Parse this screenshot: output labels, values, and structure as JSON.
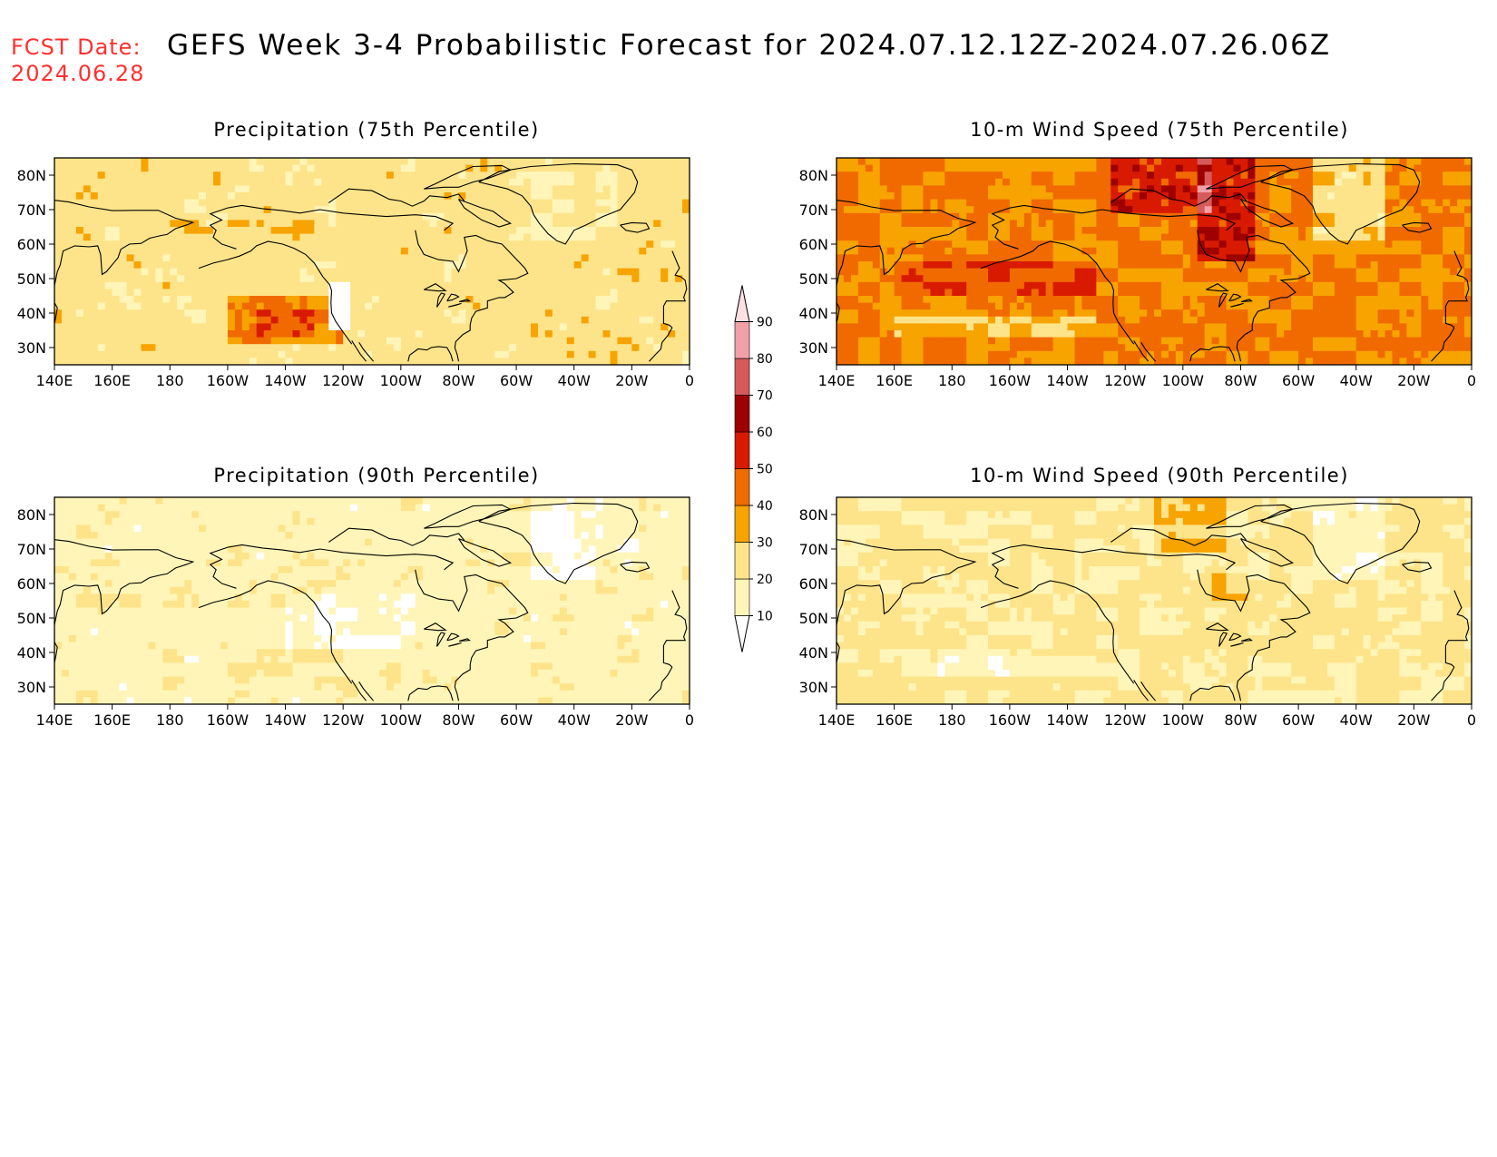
{
  "header": {
    "fcst_label": "FCST Date:",
    "fcst_date": "2024.06.28",
    "title": "GEFS Week 3-4 Probabilistic Forecast for 2024.07.12.12Z-2024.07.26.06Z"
  },
  "panels": [
    {
      "title": "Precipitation (75th Percentile)",
      "variable": "precipitation",
      "percentile": 75,
      "field_intensity": "moderate"
    },
    {
      "title": "10-m Wind Speed (75th Percentile)",
      "variable": "wind_speed_10m",
      "percentile": 75,
      "field_intensity": "high"
    },
    {
      "title": "Precipitation (90th Percentile)",
      "variable": "precipitation",
      "percentile": 90,
      "field_intensity": "low"
    },
    {
      "title": "10-m Wind Speed (90th Percentile)",
      "variable": "wind_speed_10m",
      "percentile": 90,
      "field_intensity": "low-moderate"
    }
  ],
  "axes": {
    "lat_labels": [
      "80N",
      "70N",
      "60N",
      "50N",
      "40N",
      "30N"
    ],
    "lon_labels": [
      "140E",
      "160E",
      "180",
      "160W",
      "140W",
      "120W",
      "100W",
      "80W",
      "60W",
      "40W",
      "20W",
      "0"
    ]
  },
  "colorbar": {
    "labels": [
      "10",
      "20",
      "30",
      "40",
      "50",
      "60",
      "70",
      "80",
      "90"
    ],
    "colors": [
      "#ffffff",
      "#fff5b8",
      "#fde48a",
      "#f7a300",
      "#f06a00",
      "#d81a00",
      "#9e0000",
      "#d65a5a",
      "#f2a0a8",
      "#fde0e4"
    ]
  }
}
